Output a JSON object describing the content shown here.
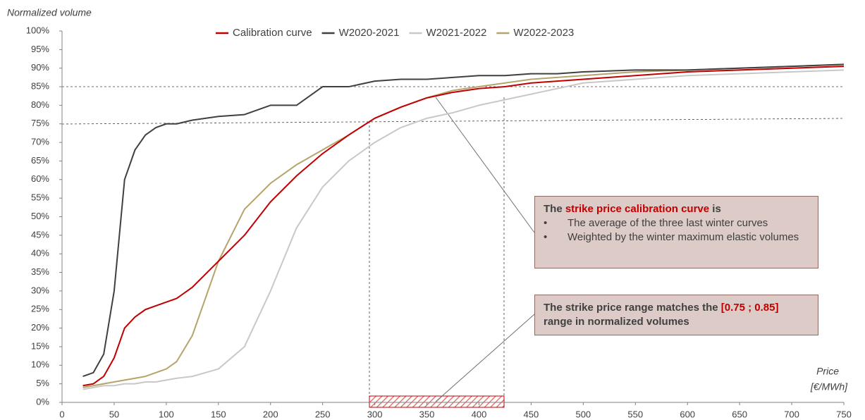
{
  "chart_data": {
    "type": "line",
    "y_label": "Normalized volume",
    "x_label": [
      "Price",
      "[€/MWh]"
    ],
    "xlim": [
      0,
      750
    ],
    "xticks": [
      0,
      50,
      100,
      150,
      200,
      250,
      300,
      350,
      400,
      450,
      500,
      550,
      600,
      650,
      700,
      750
    ],
    "ylim": [
      0,
      100
    ],
    "yticks": [
      {
        "value": 0,
        "label": "0%"
      },
      {
        "value": 5,
        "label": "5%"
      },
      {
        "value": 10,
        "label": "10%"
      },
      {
        "value": 15,
        "label": "15%"
      },
      {
        "value": 20,
        "label": "20%"
      },
      {
        "value": 25,
        "label": "25%"
      },
      {
        "value": 30,
        "label": "30%"
      },
      {
        "value": 35,
        "label": "35%"
      },
      {
        "value": 40,
        "label": "40%"
      },
      {
        "value": 45,
        "label": "45%"
      },
      {
        "value": 50,
        "label": "50%"
      },
      {
        "value": 55,
        "label": "55%"
      },
      {
        "value": 60,
        "label": "60%"
      },
      {
        "value": 65,
        "label": "65%"
      },
      {
        "value": 70,
        "label": "70%"
      },
      {
        "value": 75,
        "label": "75%"
      },
      {
        "value": 80,
        "label": "80%"
      },
      {
        "value": 85,
        "label": "85%"
      },
      {
        "value": 90,
        "label": "90%"
      },
      {
        "value": 95,
        "label": "95%"
      },
      {
        "value": 100,
        "label": "100%"
      }
    ],
    "legend": "top",
    "x": [
      20,
      30,
      40,
      50,
      60,
      70,
      80,
      90,
      100,
      110,
      125,
      150,
      175,
      200,
      225,
      250,
      275,
      300,
      325,
      350,
      375,
      400,
      425,
      450,
      475,
      500,
      550,
      600,
      650,
      700,
      750
    ],
    "series": [
      {
        "name": "Calibration curve",
        "color": "#c00000",
        "values": [
          4.5,
          5,
          7,
          12,
          20,
          23,
          25,
          26,
          27,
          28,
          31,
          38,
          45,
          54,
          61,
          67,
          72,
          76.5,
          79.5,
          82,
          83.5,
          84.5,
          85,
          86,
          86.5,
          87,
          88,
          89,
          89.5,
          90,
          90.5
        ]
      },
      {
        "name": "W2020-2021",
        "color": "#404040",
        "values": [
          7,
          8,
          13,
          30,
          60,
          68,
          72,
          74,
          75,
          75,
          76,
          77,
          77.5,
          80,
          80,
          85,
          85,
          86.5,
          87,
          87,
          87.5,
          88,
          88,
          88.5,
          88.5,
          89,
          89.5,
          89.5,
          90,
          90.5,
          91
        ]
      },
      {
        "name": "W2021-2022",
        "color": "#c8c8c8",
        "values": [
          3.5,
          4,
          4.5,
          4.5,
          5,
          5,
          5.5,
          5.5,
          6,
          6.5,
          7,
          9,
          15,
          30,
          47,
          58,
          65,
          70,
          74,
          76.5,
          78,
          80,
          81.5,
          83,
          84.5,
          86,
          87,
          88,
          88.5,
          89,
          89.5
        ]
      },
      {
        "name": "W2022-2023",
        "color": "#b5a46a",
        "values": [
          4,
          4.5,
          5,
          5.5,
          6,
          6.5,
          7,
          8,
          9,
          11,
          18,
          38,
          52,
          59,
          64,
          68,
          72,
          76.5,
          79.5,
          82,
          84,
          85,
          86,
          87,
          87.5,
          88,
          89,
          89.5,
          90,
          90.5,
          91
        ]
      }
    ],
    "annotations": [
      {
        "title": [
          "The ",
          "strike price calibration curve",
          " is"
        ],
        "bullets": [
          "The average of the three last winter curves",
          "Weighted by the winter maximum elastic volumes"
        ]
      },
      {
        "parts": [
          "The strike price range matches the ",
          "[0.75 ; 0.85]",
          "range in normalized volumes"
        ]
      }
    ]
  }
}
